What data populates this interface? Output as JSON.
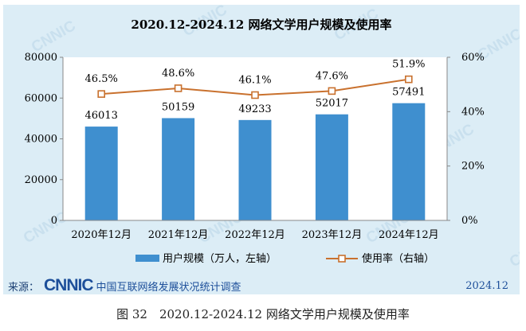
{
  "chart_data": {
    "type": "bar+line",
    "title": "2020.12-2024.12 网络文学用户规模及使用率",
    "categories": [
      "2020年12月",
      "2021年12月",
      "2022年12月",
      "2023年12月",
      "2024年12月"
    ],
    "series": [
      {
        "name": "用户规模（万人，左轴）",
        "type": "bar",
        "axis": "left",
        "values": [
          46013,
          50159,
          49233,
          52017,
          57491
        ],
        "labels": [
          "46013",
          "50159",
          "49233",
          "52017",
          "57491"
        ],
        "color": "#3f8fcf"
      },
      {
        "name": "使用率（右轴）",
        "type": "line",
        "axis": "right",
        "values": [
          46.5,
          48.6,
          46.1,
          47.6,
          51.9
        ],
        "labels": [
          "46.5%",
          "48.6%",
          "46.1%",
          "47.6%",
          "51.9%"
        ],
        "color": "#c9712e"
      }
    ],
    "left_axis": {
      "range": [
        0,
        80000
      ],
      "ticks": [
        "0",
        "20000",
        "40000",
        "60000",
        "80000"
      ]
    },
    "right_axis": {
      "range": [
        0,
        60
      ],
      "ticks": [
        "0%",
        "20%",
        "40%",
        "60%"
      ]
    },
    "grid": false,
    "legend": "bottom"
  },
  "watermark": "CNNIC",
  "source": {
    "label": "来源：",
    "logo_text": "CNNIC",
    "org": "中国互联网络发展状况统计调查",
    "date": "2024.12"
  },
  "caption": "图 32　2020.12-2024.12 网络文学用户规模及使用率"
}
